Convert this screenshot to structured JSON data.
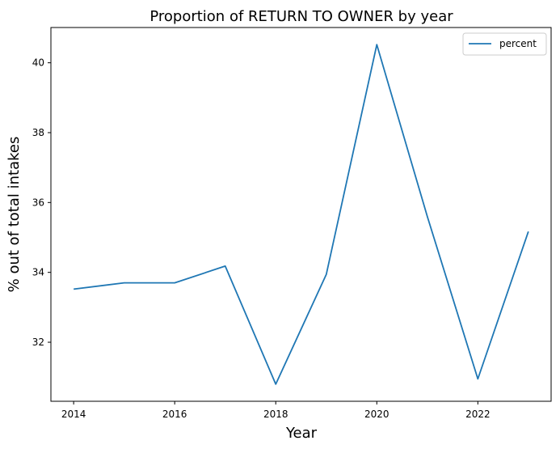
{
  "chart_data": {
    "type": "line",
    "title": "Proportion of RETURN TO OWNER by year",
    "xlabel": "Year",
    "ylabel": "% out of total intakes",
    "x": [
      2014,
      2015,
      2016,
      2017,
      2018,
      2019,
      2020,
      2021,
      2022,
      2023
    ],
    "series": [
      {
        "name": "percent",
        "color": "#1f77b4",
        "values": [
          33.52,
          33.7,
          33.7,
          34.18,
          30.8,
          33.94,
          40.52,
          35.6,
          30.95,
          35.17
        ]
      }
    ],
    "xticks": [
      2014,
      2016,
      2018,
      2020,
      2022
    ],
    "yticks": [
      32,
      34,
      36,
      38,
      40
    ],
    "xlim": [
      2013.55,
      2023.45
    ],
    "ylim": [
      30.31,
      41.01
    ],
    "grid": false,
    "legend_position": "top-right"
  }
}
